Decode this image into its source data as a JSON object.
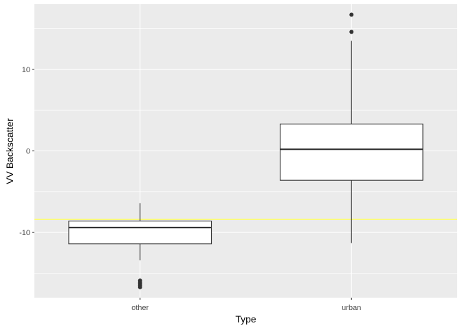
{
  "chart_data": {
    "type": "box",
    "xlabel": "Type",
    "ylabel": "VV Backscatter",
    "categories": [
      "other",
      "urban"
    ],
    "ylim": [
      -18.0,
      18.0
    ],
    "y_ticks": [
      -10,
      0,
      10
    ],
    "y_tick_labels": [
      "-10",
      "0",
      "10"
    ],
    "grid": true,
    "boxes": [
      {
        "category": "other",
        "lower_whisker": -13.4,
        "q1": -11.4,
        "median": -9.4,
        "q3": -8.6,
        "upper_whisker": -6.4,
        "outliers": [
          -15.9,
          -16.1,
          -16.3,
          -16.5,
          -16.7
        ]
      },
      {
        "category": "urban",
        "lower_whisker": -11.3,
        "q1": -3.6,
        "median": 0.2,
        "q3": 3.3,
        "upper_whisker": 13.5,
        "outliers": [
          14.6,
          16.7
        ]
      }
    ],
    "reference_line": {
      "y": -8.4,
      "color": "#ffff66"
    },
    "colors": {
      "panel": "#ebebeb",
      "grid": "#ffffff",
      "box_fill": "#ffffff",
      "box_line": "#333333"
    }
  }
}
